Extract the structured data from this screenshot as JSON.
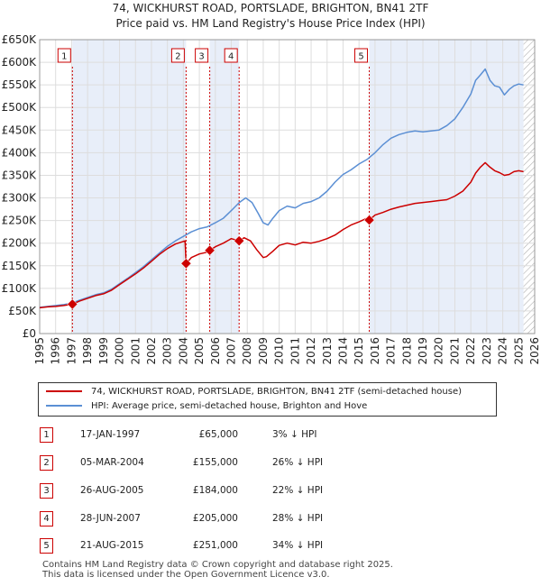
{
  "title_line1": "74, WICKHURST ROAD, PORTSLADE, BRIGHTON, BN41 2TF",
  "title_line2": "Price paid vs. HM Land Registry's House Price Index (HPI)",
  "colors": {
    "property": "#cc0000",
    "hpi": "#5b8fd4",
    "band": "#e8eef9",
    "marker_border": "#cc0000"
  },
  "chart_data": {
    "type": "line",
    "xlim": [
      1995,
      2026
    ],
    "ylim": [
      0,
      650000
    ],
    "y_ticks": [
      0,
      50000,
      100000,
      150000,
      200000,
      250000,
      300000,
      350000,
      400000,
      450000,
      500000,
      550000,
      600000,
      650000
    ],
    "y_tick_labels": [
      "£0",
      "£50K",
      "£100K",
      "£150K",
      "£200K",
      "£250K",
      "£300K",
      "£350K",
      "£400K",
      "£450K",
      "£500K",
      "£550K",
      "£600K",
      "£650K"
    ],
    "x_ticks": [
      1995,
      1996,
      1997,
      1998,
      1999,
      2000,
      2001,
      2002,
      2003,
      2004,
      2005,
      2006,
      2007,
      2008,
      2009,
      2010,
      2011,
      2012,
      2013,
      2014,
      2015,
      2016,
      2017,
      2018,
      2019,
      2020,
      2021,
      2022,
      2023,
      2024,
      2025,
      2026
    ],
    "x_tick_labels": [
      "1995",
      "1996",
      "1997",
      "1998",
      "1999",
      "2000",
      "2001",
      "2002",
      "2003",
      "2004",
      "2005",
      "2006",
      "2007",
      "2008",
      "2009",
      "2010",
      "2011",
      "2012",
      "2013",
      "2014",
      "2015",
      "2016",
      "2017",
      "2018",
      "2019",
      "2020",
      "2021",
      "2022",
      "2023",
      "2024",
      "2025",
      "2026"
    ],
    "shaded_bands": [
      [
        1997.05,
        2004.17
      ],
      [
        2005.65,
        2007.49
      ],
      [
        2015.64,
        2025.3
      ]
    ],
    "hatch_start": 2025.3,
    "series": [
      {
        "name": "74, WICKHURST ROAD, PORTSLADE, BRIGHTON, BN41 2TF (semi-detached house)",
        "color_key": "property",
        "x": [
          1995.0,
          1995.5,
          1996.0,
          1996.5,
          1997.05,
          1997.5,
          1998.0,
          1998.5,
          1999.0,
          1999.5,
          2000.0,
          2000.5,
          2001.0,
          2001.5,
          2002.0,
          2002.5,
          2003.0,
          2003.5,
          2004.1,
          2004.17,
          2004.5,
          2005.0,
          2005.5,
          2005.65,
          2006.0,
          2006.5,
          2007.0,
          2007.49,
          2007.8,
          2008.2,
          2008.6,
          2009.0,
          2009.2,
          2009.6,
          2010.0,
          2010.5,
          2011.0,
          2011.5,
          2012.0,
          2012.5,
          2013.0,
          2013.5,
          2014.0,
          2014.5,
          2015.0,
          2015.5,
          2015.64,
          2016.0,
          2016.5,
          2017.0,
          2017.5,
          2018.0,
          2018.5,
          2019.0,
          2019.5,
          2020.0,
          2020.5,
          2021.0,
          2021.5,
          2022.0,
          2022.3,
          2022.6,
          2022.9,
          2023.2,
          2023.5,
          2023.8,
          2024.1,
          2024.4,
          2024.7,
          2025.0,
          2025.3
        ],
        "y": [
          57000,
          59000,
          60000,
          62000,
          65000,
          72000,
          78000,
          84000,
          88000,
          96000,
          108000,
          120000,
          132000,
          145000,
          160000,
          175000,
          188000,
          198000,
          205000,
          155000,
          168000,
          176000,
          180000,
          184000,
          192000,
          200000,
          210000,
          205000,
          212000,
          205000,
          185000,
          168000,
          170000,
          182000,
          195000,
          200000,
          196000,
          202000,
          200000,
          204000,
          210000,
          218000,
          230000,
          240000,
          247000,
          255000,
          251000,
          262000,
          268000,
          275000,
          280000,
          284000,
          288000,
          290000,
          292000,
          294000,
          296000,
          304000,
          315000,
          335000,
          355000,
          368000,
          378000,
          368000,
          360000,
          356000,
          350000,
          352000,
          358000,
          360000,
          358000
        ]
      },
      {
        "name": "HPI: Average price, semi-detached house, Brighton and Hove",
        "color_key": "hpi",
        "x": [
          1995.0,
          1995.5,
          1996.0,
          1996.5,
          1997.0,
          1997.5,
          1998.0,
          1998.5,
          1999.0,
          1999.5,
          2000.0,
          2000.5,
          2001.0,
          2001.5,
          2002.0,
          2002.5,
          2003.0,
          2003.5,
          2004.0,
          2004.5,
          2005.0,
          2005.5,
          2006.0,
          2006.5,
          2007.0,
          2007.5,
          2007.9,
          2008.3,
          2008.7,
          2009.0,
          2009.3,
          2009.6,
          2010.0,
          2010.5,
          2011.0,
          2011.5,
          2012.0,
          2012.5,
          2013.0,
          2013.5,
          2014.0,
          2014.5,
          2015.0,
          2015.5,
          2016.0,
          2016.5,
          2017.0,
          2017.5,
          2018.0,
          2018.5,
          2019.0,
          2019.5,
          2020.0,
          2020.5,
          2021.0,
          2021.5,
          2022.0,
          2022.3,
          2022.6,
          2022.9,
          2023.2,
          2023.5,
          2023.8,
          2024.1,
          2024.4,
          2024.7,
          2025.0,
          2025.3
        ],
        "y": [
          58000,
          60000,
          62000,
          64000,
          67000,
          74000,
          80000,
          86000,
          90000,
          98000,
          110000,
          122000,
          135000,
          148000,
          163000,
          178000,
          193000,
          205000,
          215000,
          225000,
          232000,
          236000,
          245000,
          255000,
          272000,
          290000,
          300000,
          290000,
          265000,
          245000,
          240000,
          255000,
          272000,
          282000,
          278000,
          288000,
          292000,
          300000,
          315000,
          335000,
          352000,
          362000,
          375000,
          385000,
          400000,
          418000,
          432000,
          440000,
          445000,
          448000,
          446000,
          448000,
          450000,
          460000,
          475000,
          500000,
          530000,
          560000,
          572000,
          585000,
          560000,
          548000,
          545000,
          528000,
          540000,
          548000,
          552000,
          550000
        ]
      }
    ],
    "sales_markers": [
      {
        "label": "1",
        "x": 1997.05,
        "y": 65000
      },
      {
        "label": "2",
        "x": 2004.17,
        "y": 155000
      },
      {
        "label": "3",
        "x": 2005.65,
        "y": 184000
      },
      {
        "label": "4",
        "x": 2007.49,
        "y": 205000
      },
      {
        "label": "5",
        "x": 2015.64,
        "y": 251000
      }
    ]
  },
  "legend": {
    "property_label": "74, WICKHURST ROAD, PORTSLADE, BRIGHTON, BN41 2TF (semi-detached house)",
    "hpi_label": "HPI: Average price, semi-detached house, Brighton and Hove"
  },
  "sales": [
    {
      "num": "1",
      "date": "17-JAN-1997",
      "price": "£65,000",
      "pct": "3% ↓ HPI"
    },
    {
      "num": "2",
      "date": "05-MAR-2004",
      "price": "£155,000",
      "pct": "26% ↓ HPI"
    },
    {
      "num": "3",
      "date": "26-AUG-2005",
      "price": "£184,000",
      "pct": "22% ↓ HPI"
    },
    {
      "num": "4",
      "date": "28-JUN-2007",
      "price": "£205,000",
      "pct": "28% ↓ HPI"
    },
    {
      "num": "5",
      "date": "21-AUG-2015",
      "price": "£251,000",
      "pct": "34% ↓ HPI"
    }
  ],
  "footer": {
    "line1": "Contains HM Land Registry data © Crown copyright and database right 2025.",
    "line2": "This data is licensed under the Open Government Licence v3.0."
  }
}
